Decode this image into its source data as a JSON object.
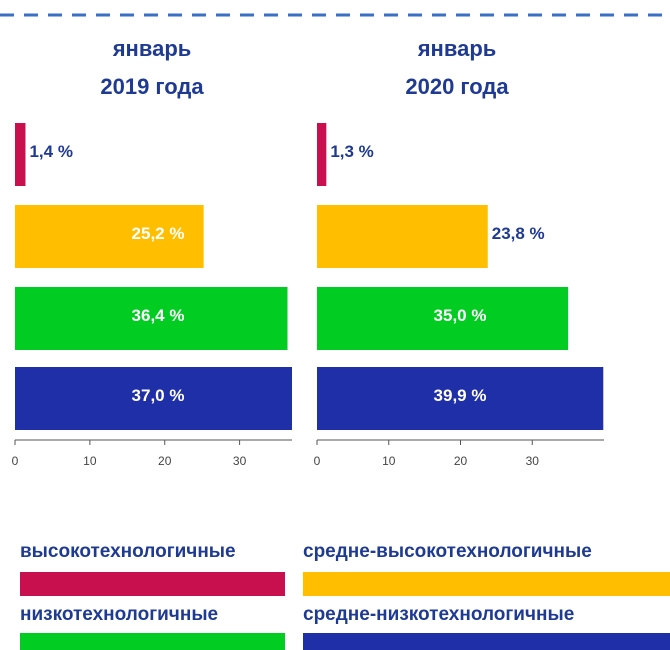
{
  "chart_data": [
    {
      "type": "barh",
      "title": "январь",
      "subtitle": "2019 года",
      "values": [
        1.4,
        25.2,
        36.4,
        37.0
      ],
      "value_labels": [
        "1,4 %",
        "25,2 %",
        "36,4 %",
        "37,0 %"
      ],
      "xlim": [
        0,
        37
      ],
      "xticks": [
        0,
        10,
        20,
        30
      ]
    },
    {
      "type": "barh",
      "title": "январь",
      "subtitle": "2020 года",
      "values": [
        1.3,
        23.8,
        35.0,
        39.9
      ],
      "value_labels": [
        "1,3 %",
        "23,8 %",
        "35,0 %",
        "39,9 %"
      ],
      "xlim": [
        0,
        40
      ],
      "xticks": [
        0,
        10,
        20,
        30
      ]
    }
  ],
  "legend": [
    {
      "name": "высокотехнологичные",
      "color": "#c8104f"
    },
    {
      "name": "средне-высокотехнологичные",
      "color": "#ffbf00"
    },
    {
      "name": "низкотехнологичные",
      "color": "#00cc22"
    },
    {
      "name": "средне-низкотехнологичные",
      "color": "#1f2fa8"
    }
  ]
}
